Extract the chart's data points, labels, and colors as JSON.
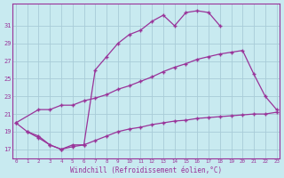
{
  "xlabel": "Windchill (Refroidissement éolien,°C)",
  "background_color": "#c8eaf0",
  "grid_color": "#a8ccd8",
  "line_color": "#993399",
  "x_ticks": [
    0,
    1,
    2,
    3,
    4,
    5,
    6,
    7,
    8,
    9,
    10,
    11,
    12,
    13,
    14,
    15,
    16,
    17,
    18,
    19,
    20,
    21,
    22,
    23
  ],
  "y_ticks": [
    17,
    19,
    21,
    23,
    25,
    27,
    29,
    31
  ],
  "ylim": [
    16.0,
    33.5
  ],
  "xlim": [
    -0.3,
    23.3
  ],
  "line1_x": [
    0,
    1,
    2,
    3,
    4,
    5,
    6,
    7,
    8,
    9,
    10,
    11,
    12,
    13,
    14,
    15,
    16,
    17,
    18
  ],
  "line1_y": [
    20.0,
    19.0,
    18.5,
    17.5,
    17.0,
    17.5,
    17.5,
    26.0,
    27.5,
    29.0,
    30.0,
    30.5,
    31.5,
    32.2,
    31.0,
    32.5,
    32.7,
    32.5,
    31.0
  ],
  "line2_x": [
    0,
    2,
    3,
    4,
    5,
    6,
    7,
    8,
    9,
    10,
    11,
    12,
    13,
    14,
    15,
    16,
    17,
    18,
    19,
    20,
    21,
    22,
    23
  ],
  "line2_y": [
    20.0,
    21.5,
    21.5,
    22.0,
    22.0,
    22.5,
    22.8,
    23.2,
    23.8,
    24.2,
    24.7,
    25.2,
    25.8,
    26.3,
    26.7,
    27.2,
    27.5,
    27.8,
    28.0,
    28.2,
    25.5,
    23.0,
    21.5
  ],
  "line3_x": [
    1,
    2,
    3,
    4,
    5,
    6,
    7,
    8,
    9,
    10,
    11,
    12,
    13,
    14,
    15,
    16,
    17,
    18,
    19,
    20,
    21,
    22,
    23
  ],
  "line3_y": [
    19.0,
    18.3,
    17.5,
    17.0,
    17.3,
    17.5,
    18.0,
    18.5,
    19.0,
    19.3,
    19.5,
    19.8,
    20.0,
    20.2,
    20.3,
    20.5,
    20.6,
    20.7,
    20.8,
    20.9,
    21.0,
    21.0,
    21.2
  ]
}
